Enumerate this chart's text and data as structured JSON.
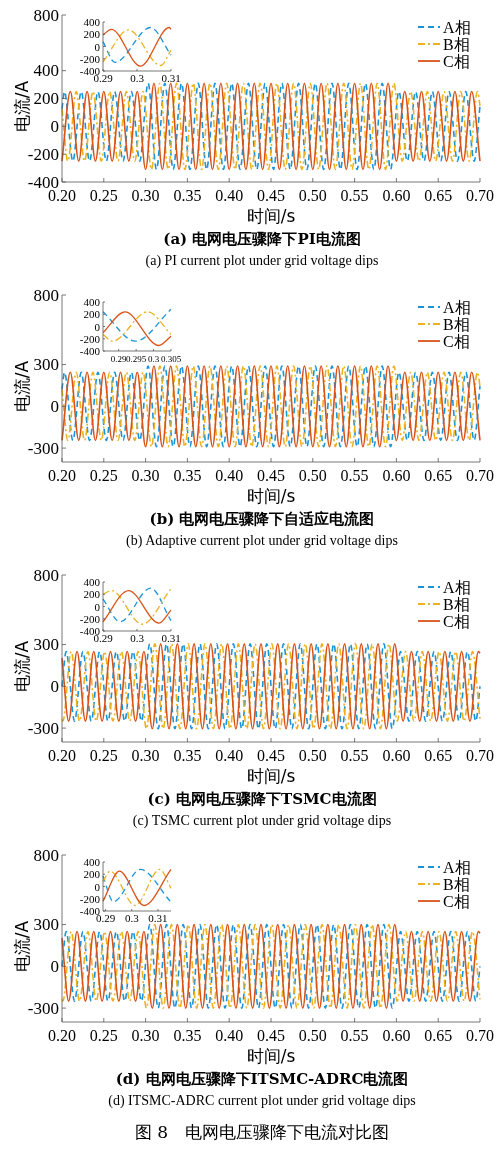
{
  "chart_data": [
    {
      "type": "line",
      "xlabel": "时间/s",
      "ylabel": "电流/A",
      "annotations": [
        "(a) 电网电压骤降下PI电流图",
        "(a) PI current plot under grid voltage dips"
      ],
      "xlim": [
        0.2,
        0.7
      ],
      "ylim": [
        -400,
        800
      ],
      "xticks": [
        {
          "value": 0.2,
          "label": "0.20"
        },
        {
          "value": 0.25,
          "label": "0.25"
        },
        {
          "value": 0.3,
          "label": "0.30"
        },
        {
          "value": 0.35,
          "label": "0.35"
        },
        {
          "value": 0.4,
          "label": "0.40"
        },
        {
          "value": 0.45,
          "label": "0.45"
        },
        {
          "value": 0.5,
          "label": "0.50"
        },
        {
          "value": 0.55,
          "label": "0.55"
        },
        {
          "value": 0.6,
          "label": "0.60"
        },
        {
          "value": 0.65,
          "label": "0.65"
        },
        {
          "value": 0.7,
          "label": "0.70"
        }
      ],
      "yticks": [
        -400,
        -200,
        0,
        200,
        400,
        800
      ],
      "legend": "top right",
      "series": [
        {
          "name": "A相",
          "color": "#1a94d8",
          "line_style": "dashed",
          "x": [
            0.2,
            0.203,
            0.213,
            0.223,
            0.233,
            0.243,
            0.253,
            0.263,
            0.273,
            0.283,
            0.293,
            0.303,
            0.313,
            0.323,
            0.333,
            0.343,
            0.353,
            0.363,
            0.373,
            0.383,
            0.393,
            0.403,
            0.413,
            0.423,
            0.433,
            0.443,
            0.453,
            0.463,
            0.473,
            0.483,
            0.493,
            0.503,
            0.513,
            0.523,
            0.533,
            0.543,
            0.553,
            0.563,
            0.573,
            0.583,
            0.593,
            0.603,
            0.613,
            0.623,
            0.633,
            0.643,
            0.653,
            0.663,
            0.673,
            0.683,
            0.693,
            0.7
          ],
          "values": [
            125,
            250,
            -250,
            250,
            -250,
            250,
            -250,
            250,
            -250,
            250,
            -250,
            310,
            -310,
            310,
            -310,
            310,
            -310,
            310,
            -310,
            310,
            -310,
            310,
            -310,
            310,
            -310,
            310,
            -310,
            310,
            -310,
            310,
            -310,
            310,
            -310,
            310,
            -310,
            310,
            -310,
            310,
            -310,
            310,
            -310,
            250,
            -250,
            250,
            -250,
            250,
            -250,
            250,
            -250,
            250,
            -250,
            148
          ]
        },
        {
          "name": "B相",
          "color": "#edb120",
          "line_style": "dashdot",
          "x": [
            0.2,
            0.207,
            0.217,
            0.227,
            0.237,
            0.247,
            0.257,
            0.267,
            0.277,
            0.287,
            0.297,
            0.307,
            0.317,
            0.327,
            0.337,
            0.347,
            0.357,
            0.367,
            0.377,
            0.387,
            0.397,
            0.407,
            0.417,
            0.427,
            0.437,
            0.447,
            0.457,
            0.467,
            0.477,
            0.487,
            0.497,
            0.507,
            0.517,
            0.527,
            0.537,
            0.547,
            0.557,
            0.567,
            0.577,
            0.587,
            0.597,
            0.607,
            0.617,
            0.627,
            0.637,
            0.647,
            0.657,
            0.667,
            0.677,
            0.687,
            0.697,
            0.7
          ],
          "values": [
            125,
            -250,
            250,
            -250,
            250,
            -250,
            250,
            -250,
            250,
            -250,
            250,
            -310,
            310,
            -310,
            310,
            -310,
            310,
            -310,
            310,
            -310,
            310,
            -310,
            310,
            -310,
            310,
            -310,
            310,
            -310,
            310,
            -310,
            310,
            -310,
            310,
            -310,
            310,
            -310,
            310,
            -310,
            310,
            -310,
            310,
            -250,
            250,
            -250,
            250,
            -250,
            250,
            -250,
            250,
            -250,
            250,
            148
          ]
        },
        {
          "name": "C相",
          "color": "#d95319",
          "line_style": "solid",
          "x": [
            0.2,
            0.21,
            0.22,
            0.23,
            0.24,
            0.25,
            0.26,
            0.27,
            0.28,
            0.29,
            0.3,
            0.31,
            0.32,
            0.33,
            0.34,
            0.35,
            0.36,
            0.37,
            0.38,
            0.39,
            0.4,
            0.41,
            0.42,
            0.43,
            0.44,
            0.45,
            0.46,
            0.47,
            0.48,
            0.49,
            0.5,
            0.51,
            0.52,
            0.53,
            0.54,
            0.55,
            0.56,
            0.57,
            0.58,
            0.59,
            0.6,
            0.61,
            0.62,
            0.63,
            0.64,
            0.65,
            0.66,
            0.67,
            0.68,
            0.69,
            0.7
          ],
          "values": [
            -250,
            250,
            -250,
            250,
            -250,
            250,
            -250,
            250,
            -250,
            250,
            -310,
            310,
            -310,
            310,
            -310,
            310,
            -310,
            310,
            -310,
            310,
            -310,
            310,
            -310,
            310,
            -310,
            310,
            -310,
            310,
            -310,
            310,
            -310,
            310,
            -310,
            310,
            -310,
            310,
            -310,
            310,
            -310,
            310,
            -250,
            250,
            -250,
            250,
            -250,
            250,
            -250,
            250,
            -250,
            250,
            -250
          ]
        }
      ]
    },
    {
      "type": "line",
      "xlim": [
        0.29,
        0.31
      ],
      "ylim": [
        -400,
        400
      ],
      "xticks": [
        0.29,
        0.3,
        0.31
      ],
      "yticks": [
        -400,
        -200,
        0,
        200,
        400
      ],
      "series": [
        {
          "color": "#1a94d8",
          "line_style": "dashed",
          "x": [
            0.29,
            0.2935,
            0.304,
            0.31
          ],
          "values": [
            80,
            -260,
            310,
            -140
          ]
        },
        {
          "color": "#edb120",
          "line_style": "dashdot",
          "x": [
            0.29,
            0.2975,
            0.307,
            0.31
          ],
          "values": [
            -250,
            270,
            -310,
            -60
          ]
        },
        {
          "color": "#d95319",
          "line_style": "solid",
          "x": [
            0.29,
            0.2925,
            0.301,
            0.3095,
            0.31
          ],
          "values": [
            190,
            280,
            -320,
            310,
            280
          ]
        }
      ]
    },
    {
      "type": "line",
      "xlabel": "时间/s",
      "ylabel": "电流/A",
      "annotations": [
        "(b) 电网电压骤降下自适应电流图",
        "(b) Adaptive current plot under grid voltage dips"
      ],
      "xlim": [
        0.2,
        0.7
      ],
      "ylim": [
        -400,
        800
      ],
      "xticks": [
        {
          "value": 0.2,
          "label": "0.20"
        },
        {
          "value": 0.25,
          "label": "0.25"
        },
        {
          "value": 0.3,
          "label": "0.30"
        },
        {
          "value": 0.35,
          "label": "0.35"
        },
        {
          "value": 0.4,
          "label": "0.40"
        },
        {
          "value": 0.45,
          "label": "0.45"
        },
        {
          "value": 0.5,
          "label": "0.50"
        },
        {
          "value": 0.55,
          "label": "0.55"
        },
        {
          "value": 0.6,
          "label": "0.60"
        },
        {
          "value": 0.65,
          "label": "0.65"
        },
        {
          "value": 0.7,
          "label": "0.70"
        }
      ],
      "yticks": [
        -300,
        0,
        300,
        800
      ],
      "legend": "top right",
      "series": [
        {
          "name": "A相",
          "color": "#1a94d8",
          "line_style": "dashed",
          "x": [
            0.2,
            0.203,
            0.213,
            0.223,
            0.233,
            0.243,
            0.253,
            0.263,
            0.273,
            0.283,
            0.293,
            0.303,
            0.313,
            0.323,
            0.333,
            0.343,
            0.353,
            0.363,
            0.373,
            0.383,
            0.393,
            0.403,
            0.413,
            0.423,
            0.433,
            0.443,
            0.453,
            0.463,
            0.473,
            0.483,
            0.493,
            0.503,
            0.513,
            0.523,
            0.533,
            0.543,
            0.553,
            0.563,
            0.573,
            0.583,
            0.593,
            0.603,
            0.613,
            0.623,
            0.633,
            0.643,
            0.653,
            0.663,
            0.673,
            0.683,
            0.693,
            0.7
          ],
          "values": [
            123,
            245,
            -245,
            245,
            -245,
            245,
            -245,
            245,
            -245,
            245,
            -245,
            290,
            -290,
            290,
            -290,
            290,
            -290,
            290,
            -290,
            290,
            -290,
            290,
            -290,
            290,
            -290,
            290,
            -290,
            290,
            -290,
            290,
            -290,
            290,
            -290,
            290,
            -290,
            290,
            -290,
            290,
            -290,
            290,
            -290,
            245,
            -245,
            245,
            -245,
            245,
            -245,
            245,
            -245,
            245,
            -245,
            145
          ]
        },
        {
          "name": "B相",
          "color": "#edb120",
          "line_style": "dashdot",
          "x": [
            0.2,
            0.207,
            0.217,
            0.227,
            0.237,
            0.247,
            0.257,
            0.267,
            0.277,
            0.287,
            0.297,
            0.307,
            0.317,
            0.327,
            0.337,
            0.347,
            0.357,
            0.367,
            0.377,
            0.387,
            0.397,
            0.407,
            0.417,
            0.427,
            0.437,
            0.447,
            0.457,
            0.467,
            0.477,
            0.487,
            0.497,
            0.507,
            0.517,
            0.527,
            0.537,
            0.547,
            0.557,
            0.567,
            0.577,
            0.587,
            0.597,
            0.607,
            0.617,
            0.627,
            0.637,
            0.647,
            0.657,
            0.667,
            0.677,
            0.687,
            0.697,
            0.7
          ],
          "values": [
            123,
            -245,
            245,
            -245,
            245,
            -245,
            245,
            -245,
            245,
            -245,
            245,
            -290,
            290,
            -290,
            290,
            -290,
            290,
            -290,
            290,
            -290,
            290,
            -290,
            290,
            -290,
            290,
            -290,
            290,
            -290,
            290,
            -290,
            290,
            -290,
            290,
            -290,
            290,
            -290,
            290,
            -290,
            290,
            -290,
            290,
            -245,
            245,
            -245,
            245,
            -245,
            245,
            -245,
            245,
            -245,
            245,
            145
          ]
        },
        {
          "name": "C相",
          "color": "#d95319",
          "line_style": "solid",
          "x": [
            0.2,
            0.21,
            0.22,
            0.23,
            0.24,
            0.25,
            0.26,
            0.27,
            0.28,
            0.29,
            0.3,
            0.31,
            0.32,
            0.33,
            0.34,
            0.35,
            0.36,
            0.37,
            0.38,
            0.39,
            0.4,
            0.41,
            0.42,
            0.43,
            0.44,
            0.45,
            0.46,
            0.47,
            0.48,
            0.49,
            0.5,
            0.51,
            0.52,
            0.53,
            0.54,
            0.55,
            0.56,
            0.57,
            0.58,
            0.59,
            0.6,
            0.61,
            0.62,
            0.63,
            0.64,
            0.65,
            0.66,
            0.67,
            0.68,
            0.69,
            0.7
          ],
          "values": [
            -245,
            245,
            -245,
            245,
            -245,
            245,
            -245,
            245,
            -245,
            245,
            -290,
            290,
            -290,
            290,
            -290,
            290,
            -290,
            290,
            -290,
            290,
            -290,
            290,
            -290,
            290,
            -290,
            290,
            -290,
            290,
            -290,
            290,
            -290,
            290,
            -290,
            290,
            -290,
            290,
            -290,
            290,
            -290,
            290,
            -245,
            245,
            -245,
            245,
            -245,
            245,
            -245,
            245,
            -245,
            245,
            -245
          ]
        }
      ]
    },
    {
      "type": "line",
      "xlim": [
        0.2855,
        0.305
      ],
      "ylim": [
        -400,
        400
      ],
      "xticks": [
        0.29,
        0.295,
        0.3,
        0.305
      ],
      "yticks": [
        -400,
        -200,
        0,
        200,
        400
      ],
      "series": [
        {
          "color": "#1a94d8",
          "line_style": "dashed",
          "x": [
            0.2855,
            0.2948,
            0.305
          ],
          "values": [
            240,
            -240,
            280
          ]
        },
        {
          "color": "#edb120",
          "line_style": "dashdot",
          "x": [
            0.2855,
            0.2882,
            0.2983,
            0.305
          ],
          "values": [
            -130,
            -240,
            240,
            -130
          ]
        },
        {
          "color": "#d95319",
          "line_style": "solid",
          "x": [
            0.2855,
            0.2918,
            0.3015,
            0.305
          ],
          "values": [
            -100,
            240,
            -310,
            -160
          ]
        }
      ]
    },
    {
      "type": "line",
      "xlabel": "时间/s",
      "ylabel": "电流/A",
      "annotations": [
        "(c) 电网电压骤降下TSMC电流图",
        "(c) TSMC current plot under grid voltage dips"
      ],
      "xlim": [
        0.2,
        0.7
      ],
      "ylim": [
        -400,
        800
      ],
      "xticks": [
        {
          "value": 0.2,
          "label": "0.20"
        },
        {
          "value": 0.25,
          "label": "0.25"
        },
        {
          "value": 0.3,
          "label": "0.30"
        },
        {
          "value": 0.35,
          "label": "0.35"
        },
        {
          "value": 0.4,
          "label": "0.40"
        },
        {
          "value": 0.45,
          "label": "0.45"
        },
        {
          "value": 0.5,
          "label": "0.50"
        },
        {
          "value": 0.55,
          "label": "0.55"
        },
        {
          "value": 0.6,
          "label": "0.60"
        },
        {
          "value": 0.65,
          "label": "0.65"
        },
        {
          "value": 0.7,
          "label": "0.70"
        }
      ],
      "yticks": [
        -300,
        0,
        300,
        800
      ],
      "legend": "top right",
      "series": [
        {
          "name": "A相",
          "color": "#1a94d8",
          "line_style": "dashed",
          "x": [
            0.2,
            0.205,
            0.215,
            0.225,
            0.235,
            0.245,
            0.255,
            0.265,
            0.275,
            0.285,
            0.295,
            0.305,
            0.315,
            0.325,
            0.335,
            0.345,
            0.355,
            0.365,
            0.375,
            0.385,
            0.395,
            0.405,
            0.415,
            0.425,
            0.435,
            0.445,
            0.455,
            0.465,
            0.475,
            0.485,
            0.495,
            0.505,
            0.515,
            0.525,
            0.535,
            0.545,
            0.555,
            0.565,
            0.575,
            0.585,
            0.595,
            0.605,
            0.615,
            0.625,
            0.635,
            0.645,
            0.655,
            0.665,
            0.675,
            0.685,
            0.695,
            0.7
          ],
          "values": [
            0,
            250,
            -250,
            250,
            -250,
            250,
            -250,
            250,
            -250,
            250,
            -250,
            305,
            -305,
            305,
            -305,
            305,
            -305,
            305,
            -305,
            305,
            -305,
            305,
            -305,
            305,
            -305,
            305,
            -305,
            305,
            -305,
            305,
            -305,
            305,
            -305,
            305,
            -305,
            305,
            -305,
            305,
            -305,
            305,
            -305,
            250,
            -250,
            250,
            -250,
            250,
            -250,
            250,
            -250,
            250,
            -250,
            0
          ]
        },
        {
          "name": "B相",
          "color": "#edb120",
          "line_style": "dashdot",
          "x": [
            0.2,
            0.201,
            0.211,
            0.221,
            0.231,
            0.241,
            0.251,
            0.261,
            0.271,
            0.281,
            0.291,
            0.301,
            0.311,
            0.321,
            0.331,
            0.341,
            0.351,
            0.361,
            0.371,
            0.381,
            0.391,
            0.401,
            0.411,
            0.421,
            0.431,
            0.441,
            0.451,
            0.461,
            0.471,
            0.481,
            0.491,
            0.501,
            0.511,
            0.521,
            0.531,
            0.541,
            0.551,
            0.561,
            0.571,
            0.581,
            0.591,
            0.601,
            0.611,
            0.621,
            0.631,
            0.641,
            0.651,
            0.661,
            0.671,
            0.681,
            0.691,
            0.7
          ],
          "values": [
            -238,
            -250,
            250,
            -250,
            250,
            -250,
            250,
            -250,
            250,
            -250,
            250,
            -305,
            305,
            -305,
            305,
            -305,
            305,
            -305,
            305,
            -305,
            305,
            -305,
            305,
            -305,
            305,
            -305,
            305,
            -305,
            305,
            -305,
            305,
            -305,
            305,
            -305,
            305,
            -305,
            305,
            -305,
            305,
            -305,
            305,
            -250,
            250,
            -250,
            250,
            -250,
            250,
            -250,
            250,
            -250,
            250,
            -238
          ]
        },
        {
          "name": "C相",
          "color": "#d95319",
          "line_style": "solid",
          "x": [
            0.2,
            0.208,
            0.218,
            0.228,
            0.238,
            0.248,
            0.258,
            0.268,
            0.278,
            0.288,
            0.298,
            0.308,
            0.318,
            0.328,
            0.338,
            0.348,
            0.358,
            0.368,
            0.378,
            0.388,
            0.398,
            0.408,
            0.418,
            0.428,
            0.438,
            0.448,
            0.458,
            0.468,
            0.478,
            0.488,
            0.498,
            0.508,
            0.518,
            0.528,
            0.538,
            0.548,
            0.558,
            0.568,
            0.578,
            0.588,
            0.598,
            0.608,
            0.618,
            0.628,
            0.638,
            0.648,
            0.658,
            0.668,
            0.678,
            0.688,
            0.698,
            0.7
          ],
          "values": [
            203,
            -250,
            250,
            -250,
            250,
            -250,
            250,
            -250,
            250,
            -250,
            250,
            -305,
            305,
            -305,
            305,
            -305,
            305,
            -305,
            305,
            -305,
            305,
            -305,
            305,
            -305,
            305,
            -305,
            305,
            -305,
            305,
            -305,
            305,
            -305,
            305,
            -305,
            305,
            -305,
            305,
            -305,
            305,
            -305,
            305,
            -250,
            250,
            -250,
            250,
            -250,
            250,
            -250,
            250,
            -250,
            250,
            238
          ]
        }
      ]
    },
    {
      "type": "line",
      "xlim": [
        0.29,
        0.31
      ],
      "ylim": [
        -400,
        400
      ],
      "xticks": [
        0.29,
        0.3,
        0.31
      ],
      "yticks": [
        -400,
        -200,
        0,
        200,
        400
      ],
      "series": [
        {
          "color": "#1a94d8",
          "line_style": "dashed",
          "x": [
            0.29,
            0.295,
            0.304,
            0.31
          ],
          "values": [
            120,
            -250,
            300,
            -230
          ]
        },
        {
          "color": "#edb120",
          "line_style": "dashdot",
          "x": [
            0.29,
            0.2925,
            0.3015,
            0.31
          ],
          "values": [
            200,
            260,
            -290,
            290
          ]
        },
        {
          "color": "#d95319",
          "line_style": "solid",
          "x": [
            0.29,
            0.2975,
            0.3065,
            0.31
          ],
          "values": [
            -250,
            260,
            -270,
            -60
          ]
        }
      ]
    },
    {
      "type": "line",
      "xlabel": "时间/s",
      "ylabel": "电流/A",
      "annotations": [
        "(d) 电网电压骤降下ITSMC-ADRC电流图",
        "(d) ITSMC-ADRC current plot under grid voltage dips",
        "图 8　电网电压骤降下电流对比图"
      ],
      "xlim": [
        0.2,
        0.7
      ],
      "ylim": [
        -400,
        800
      ],
      "xticks": [
        {
          "value": 0.2,
          "label": "0.20"
        },
        {
          "value": 0.25,
          "label": "0.25"
        },
        {
          "value": 0.3,
          "label": "0.30"
        },
        {
          "value": 0.35,
          "label": "0.35"
        },
        {
          "value": 0.4,
          "label": "0.40"
        },
        {
          "value": 0.45,
          "label": "0.45"
        },
        {
          "value": 0.5,
          "label": "0.50"
        },
        {
          "value": 0.55,
          "label": "0.55"
        },
        {
          "value": 0.6,
          "label": "0.60"
        },
        {
          "value": 0.65,
          "label": "0.65"
        },
        {
          "value": 0.7,
          "label": "0.70"
        }
      ],
      "yticks": [
        -300,
        0,
        300,
        800
      ],
      "legend": "top right",
      "series": [
        {
          "name": "A相",
          "color": "#1a94d8",
          "line_style": "dashed",
          "x": [
            0.2,
            0.205,
            0.215,
            0.225,
            0.235,
            0.245,
            0.255,
            0.265,
            0.275,
            0.285,
            0.295,
            0.305,
            0.315,
            0.325,
            0.335,
            0.345,
            0.355,
            0.365,
            0.375,
            0.385,
            0.395,
            0.405,
            0.415,
            0.425,
            0.435,
            0.445,
            0.455,
            0.465,
            0.475,
            0.485,
            0.495,
            0.505,
            0.515,
            0.525,
            0.535,
            0.545,
            0.555,
            0.565,
            0.575,
            0.585,
            0.595,
            0.605,
            0.615,
            0.625,
            0.635,
            0.645,
            0.655,
            0.665,
            0.675,
            0.685,
            0.695,
            0.7
          ],
          "values": [
            0,
            250,
            -250,
            250,
            -250,
            250,
            -250,
            250,
            -250,
            250,
            -250,
            300,
            -300,
            300,
            -300,
            300,
            -300,
            300,
            -300,
            300,
            -300,
            300,
            -300,
            300,
            -300,
            300,
            -300,
            300,
            -300,
            300,
            -300,
            300,
            -300,
            300,
            -300,
            300,
            -300,
            300,
            -300,
            300,
            -300,
            250,
            -250,
            250,
            -250,
            250,
            -250,
            250,
            -250,
            250,
            -250,
            0
          ]
        },
        {
          "name": "B相",
          "color": "#edb120",
          "line_style": "dashdot",
          "x": [
            0.2,
            0.201,
            0.211,
            0.221,
            0.231,
            0.241,
            0.251,
            0.261,
            0.271,
            0.281,
            0.291,
            0.301,
            0.311,
            0.321,
            0.331,
            0.341,
            0.351,
            0.361,
            0.371,
            0.381,
            0.391,
            0.401,
            0.411,
            0.421,
            0.431,
            0.441,
            0.451,
            0.461,
            0.471,
            0.481,
            0.491,
            0.501,
            0.511,
            0.521,
            0.531,
            0.541,
            0.551,
            0.561,
            0.571,
            0.581,
            0.591,
            0.601,
            0.611,
            0.621,
            0.631,
            0.641,
            0.651,
            0.661,
            0.671,
            0.681,
            0.691,
            0.7
          ],
          "values": [
            -238,
            -250,
            250,
            -250,
            250,
            -250,
            250,
            -250,
            250,
            -250,
            250,
            -300,
            300,
            -300,
            300,
            -300,
            300,
            -300,
            300,
            -300,
            300,
            -300,
            300,
            -300,
            300,
            -300,
            300,
            -300,
            300,
            -300,
            300,
            -300,
            300,
            -300,
            300,
            -300,
            300,
            -300,
            300,
            -300,
            300,
            -250,
            250,
            -250,
            250,
            -250,
            250,
            -250,
            250,
            -250,
            250,
            -238
          ]
        },
        {
          "name": "C相",
          "color": "#d95319",
          "line_style": "solid",
          "x": [
            0.2,
            0.208,
            0.218,
            0.228,
            0.238,
            0.248,
            0.258,
            0.268,
            0.278,
            0.288,
            0.298,
            0.308,
            0.318,
            0.328,
            0.338,
            0.348,
            0.358,
            0.368,
            0.378,
            0.388,
            0.398,
            0.408,
            0.418,
            0.428,
            0.438,
            0.448,
            0.458,
            0.468,
            0.478,
            0.488,
            0.498,
            0.508,
            0.518,
            0.528,
            0.538,
            0.548,
            0.558,
            0.568,
            0.578,
            0.588,
            0.598,
            0.608,
            0.618,
            0.628,
            0.638,
            0.648,
            0.658,
            0.668,
            0.678,
            0.688,
            0.698,
            0.7
          ],
          "values": [
            203,
            -250,
            250,
            -250,
            250,
            -250,
            250,
            -250,
            250,
            -250,
            250,
            -300,
            300,
            -300,
            300,
            -300,
            300,
            -300,
            300,
            -300,
            300,
            -300,
            300,
            -300,
            300,
            -300,
            300,
            -300,
            300,
            -300,
            300,
            -300,
            300,
            -300,
            300,
            -300,
            300,
            -300,
            300,
            -300,
            300,
            -250,
            250,
            -250,
            250,
            -250,
            250,
            -250,
            250,
            -250,
            250,
            238
          ]
        }
      ]
    },
    {
      "type": "line",
      "xlim": [
        0.289,
        0.315
      ],
      "ylim": [
        -400,
        400
      ],
      "xticks": [
        0.29,
        0.3,
        0.31
      ],
      "yticks": [
        -400,
        -200,
        0,
        200,
        400
      ],
      "series": [
        {
          "color": "#1a94d8",
          "line_style": "dashed",
          "x": [
            0.289,
            0.293,
            0.3033,
            0.3147
          ],
          "values": [
            170,
            -250,
            280,
            -240
          ]
        },
        {
          "color": "#edb120",
          "line_style": "dashdot",
          "x": [
            0.289,
            0.2917,
            0.3013,
            0.3107,
            0.315
          ],
          "values": [
            80,
            250,
            -310,
            280,
            -30
          ]
        },
        {
          "color": "#d95319",
          "line_style": "solid",
          "x": [
            0.289,
            0.2953,
            0.3047,
            0.315
          ],
          "values": [
            -240,
            250,
            -310,
            280
          ]
        }
      ]
    }
  ]
}
